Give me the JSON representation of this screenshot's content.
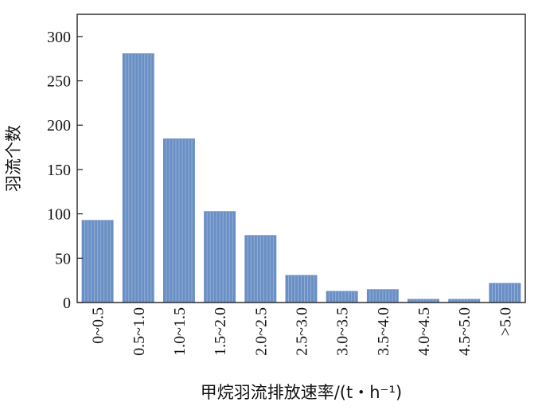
{
  "chart_data": {
    "type": "bar",
    "categories": [
      "0~0.5",
      "0.5~1.0",
      "1.0~1.5",
      "1.5~2.0",
      "2.0~2.5",
      "2.5~3.0",
      "3.0~3.5",
      "3.5~4.0",
      "4.0~4.5",
      "4.5~5.0",
      ">5.0"
    ],
    "values": [
      93,
      281,
      185,
      103,
      76,
      31,
      13,
      15,
      4,
      4,
      22
    ],
    "title": "",
    "xlabel": "甲烷羽流排放速率/(t・h⁻¹)",
    "ylabel": "羽流个数",
    "ylim": [
      0,
      325
    ],
    "yticks": [
      0,
      50,
      100,
      150,
      200,
      250,
      300
    ],
    "grid": false,
    "bar_color": "#6a8fc4"
  }
}
